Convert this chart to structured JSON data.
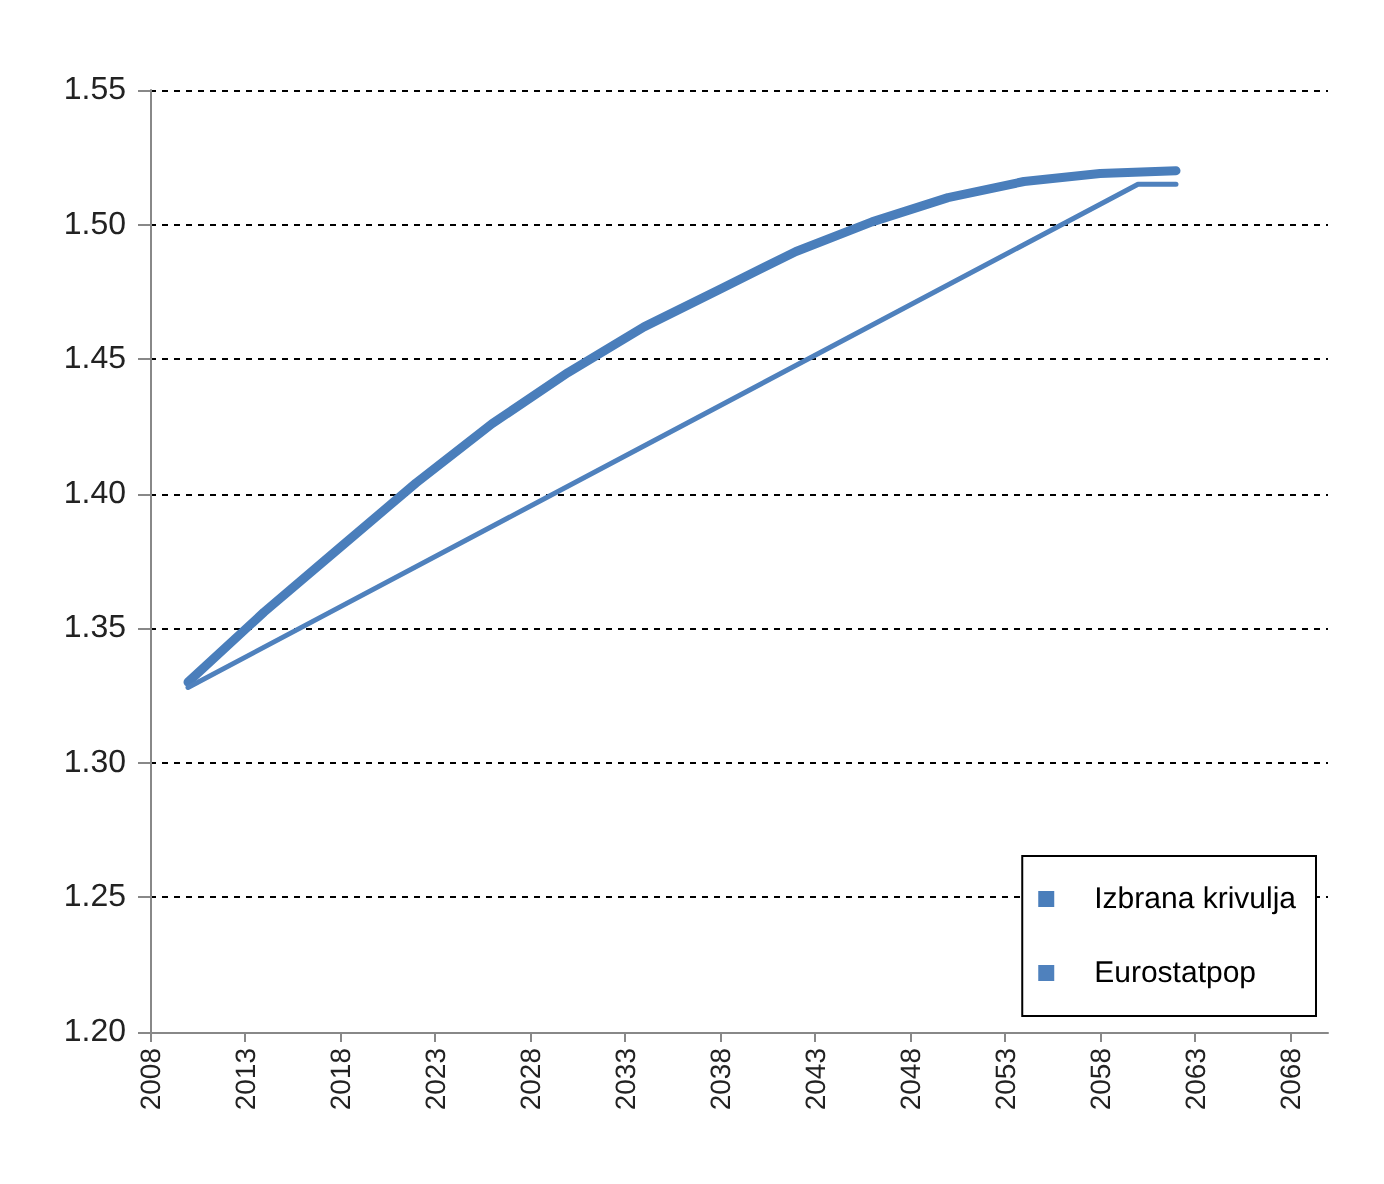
{
  "chart_data": {
    "type": "line",
    "xlim": [
      2008,
      2070
    ],
    "xticks": [
      2008,
      2013,
      2018,
      2023,
      2028,
      2033,
      2038,
      2043,
      2048,
      2053,
      2058,
      2063,
      2068
    ],
    "ylim": [
      1.2,
      1.55
    ],
    "yticks": [
      {
        "value": 1.2,
        "label": "1.20"
      },
      {
        "value": 1.25,
        "label": "1.25"
      },
      {
        "value": 1.3,
        "label": "1.30"
      },
      {
        "value": 1.35,
        "label": "1.35"
      },
      {
        "value": 1.4,
        "label": "1.40"
      },
      {
        "value": 1.45,
        "label": "1.45"
      },
      {
        "value": 1.5,
        "label": "1.50"
      },
      {
        "value": 1.55,
        "label": "1.55"
      }
    ],
    "grid": "y",
    "legend": "bottom right",
    "marker": "none",
    "line_style": "solid",
    "series": [
      {
        "name": "Izbrana krivulja",
        "color": "#4a7ebb",
        "x": [
          2010,
          2014,
          2018,
          2022,
          2026,
          2030,
          2034,
          2038,
          2042,
          2046,
          2050,
          2054,
          2058,
          2062
        ],
        "values": [
          1.33,
          1.356,
          1.38,
          1.404,
          1.426,
          1.445,
          1.462,
          1.476,
          1.49,
          1.501,
          1.51,
          1.516,
          1.519,
          1.52
        ]
      },
      {
        "name": "Eurostatpop",
        "color": "#4f81bd",
        "x": [
          2010,
          2060,
          2062
        ],
        "values": [
          1.328,
          1.515,
          1.515
        ]
      }
    ]
  }
}
